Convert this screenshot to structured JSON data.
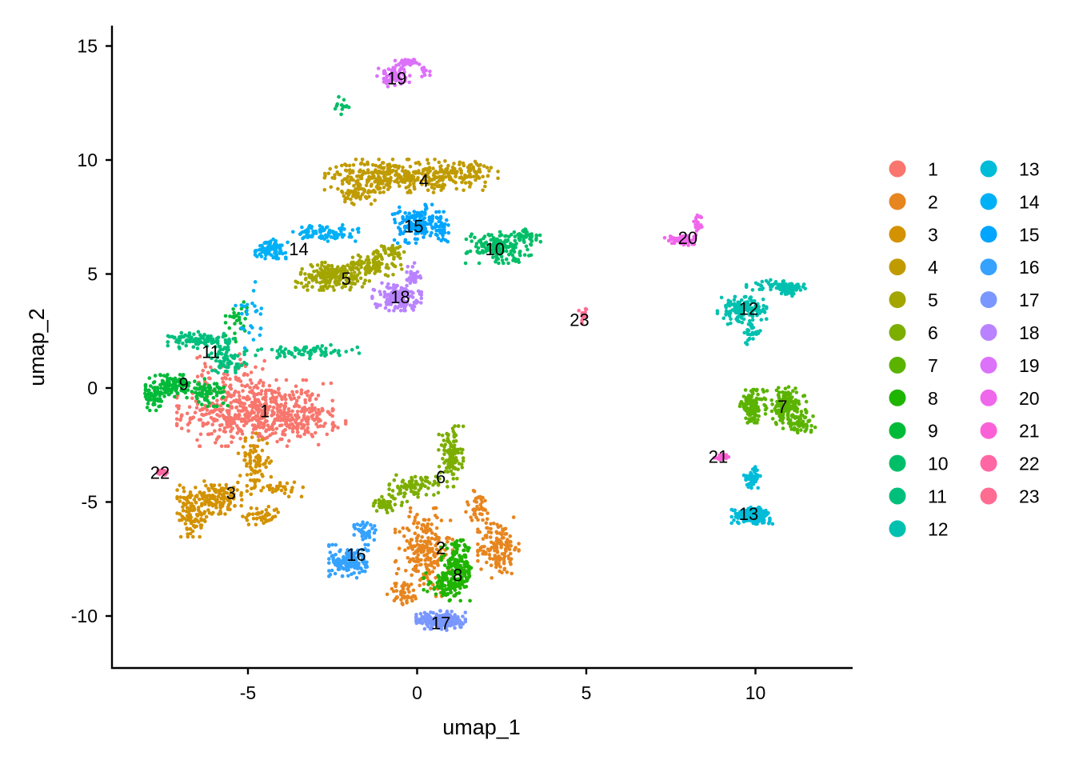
{
  "chart_data": {
    "type": "scatter",
    "title": "",
    "xlabel": "umap_1",
    "ylabel": "umap_2",
    "xlim": [
      -9,
      12.9
    ],
    "ylim": [
      -12.3,
      15.9
    ],
    "xticks": [
      -5,
      0,
      5,
      10
    ],
    "yticks": [
      -10,
      -5,
      0,
      5,
      10,
      15
    ],
    "xtick_labels": [
      "-5",
      "0",
      "5",
      "10"
    ],
    "ytick_labels": [
      "-10",
      "-5",
      "0",
      "5",
      "10",
      "15"
    ],
    "grid": false,
    "legend_position": "right",
    "legend_columns": 2,
    "clusters": [
      {
        "id": "1",
        "color": "#F8766D",
        "label_xy": [
          -4.5,
          -1.0
        ],
        "blobs": [
          [
            -4.8,
            -1.1,
            1.9,
            1.2,
            520
          ],
          [
            -5.6,
            0.6,
            0.9,
            0.8,
            60
          ],
          [
            -3.2,
            -1.4,
            0.9,
            0.6,
            80
          ]
        ]
      },
      {
        "id": "2",
        "color": "#E7851E",
        "label_xy": [
          0.7,
          -7.0
        ],
        "blobs": [
          [
            0.2,
            -7.2,
            0.7,
            1.6,
            220
          ],
          [
            2.4,
            -7.0,
            0.5,
            1.1,
            140
          ],
          [
            1.8,
            -5.3,
            0.4,
            0.7,
            40
          ],
          [
            -0.4,
            -9.0,
            0.4,
            0.5,
            40
          ]
        ]
      },
      {
        "id": "3",
        "color": "#D39200",
        "label_xy": [
          -5.5,
          -4.6
        ],
        "blobs": [
          [
            -6.0,
            -4.8,
            0.9,
            0.6,
            170
          ],
          [
            -6.6,
            -5.8,
            0.4,
            0.6,
            60
          ],
          [
            -4.8,
            -3.2,
            0.4,
            1.0,
            80
          ],
          [
            -4.6,
            -5.6,
            0.5,
            0.4,
            50
          ],
          [
            -4.1,
            -4.4,
            0.6,
            0.3,
            30
          ]
        ]
      },
      {
        "id": "4",
        "color": "#C09B00",
        "label_xy": [
          0.2,
          9.1
        ],
        "blobs": [
          [
            -0.8,
            9.3,
            1.6,
            0.6,
            300
          ],
          [
            1.3,
            9.4,
            0.9,
            0.6,
            120
          ],
          [
            -1.7,
            8.5,
            0.5,
            0.4,
            50
          ]
        ]
      },
      {
        "id": "5",
        "color": "#A3A500",
        "label_xy": [
          -2.1,
          4.8
        ],
        "blobs": [
          [
            -2.5,
            4.9,
            0.9,
            0.5,
            200
          ],
          [
            -1.3,
            5.4,
            0.7,
            0.4,
            90
          ],
          [
            -0.8,
            6.0,
            0.5,
            0.3,
            40
          ]
        ]
      },
      {
        "id": "6",
        "color": "#7CAE00",
        "label_xy": [
          0.7,
          -3.9
        ],
        "blobs": [
          [
            1.0,
            -3.0,
            0.3,
            1.1,
            120
          ],
          [
            -0.1,
            -4.3,
            0.6,
            0.4,
            90
          ],
          [
            -0.9,
            -5.1,
            0.5,
            0.3,
            50
          ]
        ]
      },
      {
        "id": "7",
        "color": "#5BB300",
        "label_xy": [
          10.8,
          -0.8
        ],
        "blobs": [
          [
            10.9,
            -0.8,
            0.5,
            0.7,
            170
          ],
          [
            9.9,
            -0.8,
            0.3,
            0.6,
            110
          ],
          [
            11.3,
            -1.6,
            0.4,
            0.3,
            50
          ]
        ]
      },
      {
        "id": "8",
        "color": "#1FB400",
        "label_xy": [
          1.2,
          -8.2
        ],
        "blobs": [
          [
            1.2,
            -8.0,
            0.4,
            1.1,
            190
          ],
          [
            0.8,
            -8.6,
            0.5,
            0.4,
            60
          ]
        ]
      },
      {
        "id": "9",
        "color": "#00BA38",
        "label_xy": [
          -6.9,
          0.2
        ],
        "blobs": [
          [
            -7.3,
            0.1,
            0.6,
            0.4,
            120
          ],
          [
            -7.8,
            -0.5,
            0.2,
            0.4,
            40
          ],
          [
            -6.2,
            -0.2,
            0.5,
            0.5,
            70
          ],
          [
            -5.3,
            3.0,
            0.3,
            0.8,
            30
          ]
        ]
      },
      {
        "id": "10",
        "color": "#00BE67",
        "label_xy": [
          2.3,
          6.1
        ],
        "blobs": [
          [
            2.4,
            6.2,
            0.8,
            0.6,
            160
          ],
          [
            3.2,
            6.6,
            0.4,
            0.3,
            40
          ],
          [
            -2.2,
            12.4,
            0.2,
            0.4,
            14
          ]
        ]
      },
      {
        "id": "11",
        "color": "#00BF7D",
        "label_xy": [
          -6.1,
          1.6
        ],
        "blobs": [
          [
            -6.4,
            2.1,
            0.8,
            0.3,
            110
          ],
          [
            -5.6,
            1.2,
            0.5,
            0.5,
            70
          ],
          [
            -3.2,
            1.6,
            1.3,
            0.25,
            70
          ]
        ]
      },
      {
        "id": "12",
        "color": "#00C0AF",
        "label_xy": [
          9.8,
          3.5
        ],
        "blobs": [
          [
            9.6,
            3.4,
            0.6,
            0.5,
            140
          ],
          [
            10.7,
            4.5,
            0.8,
            0.2,
            60
          ],
          [
            11.0,
            4.3,
            0.3,
            0.3,
            40
          ],
          [
            9.9,
            2.4,
            0.2,
            0.4,
            30
          ]
        ]
      },
      {
        "id": "13",
        "color": "#00BCD8",
        "label_xy": [
          9.8,
          -5.5
        ],
        "blobs": [
          [
            9.9,
            -5.6,
            0.5,
            0.3,
            180
          ],
          [
            9.9,
            -3.9,
            0.2,
            0.4,
            50
          ]
        ]
      },
      {
        "id": "14",
        "color": "#00B0F6",
        "label_xy": [
          -3.5,
          6.1
        ],
        "blobs": [
          [
            -4.3,
            6.1,
            0.4,
            0.35,
            90
          ],
          [
            -2.7,
            6.8,
            0.8,
            0.3,
            90
          ],
          [
            -5.0,
            3.2,
            0.4,
            1.2,
            25
          ]
        ]
      },
      {
        "id": "15",
        "color": "#00A5FF",
        "label_xy": [
          -0.1,
          7.1
        ],
        "blobs": [
          [
            0.0,
            7.2,
            0.6,
            0.7,
            150
          ],
          [
            0.7,
            7.0,
            0.2,
            0.6,
            40
          ]
        ]
      },
      {
        "id": "16",
        "color": "#35A2FF",
        "label_xy": [
          -1.8,
          -7.3
        ],
        "blobs": [
          [
            -2.0,
            -7.6,
            0.5,
            0.6,
            160
          ],
          [
            -1.5,
            -6.3,
            0.3,
            0.5,
            40
          ]
        ]
      },
      {
        "id": "17",
        "color": "#7997FF",
        "label_xy": [
          0.7,
          -10.3
        ],
        "blobs": [
          [
            0.7,
            -10.2,
            0.6,
            0.35,
            200
          ]
        ]
      },
      {
        "id": "18",
        "color": "#B983FF",
        "label_xy": [
          -0.5,
          4.0
        ],
        "blobs": [
          [
            -0.6,
            4.0,
            0.6,
            0.5,
            150
          ],
          [
            -0.1,
            5.0,
            0.2,
            0.4,
            30
          ]
        ]
      },
      {
        "id": "19",
        "color": "#DC71FA",
        "label_xy": [
          -0.6,
          13.6
        ],
        "blobs": [
          [
            -0.7,
            13.7,
            0.4,
            0.4,
            70
          ],
          [
            -0.3,
            14.3,
            0.3,
            0.15,
            30
          ],
          [
            0.2,
            13.9,
            0.15,
            0.2,
            15
          ]
        ]
      },
      {
        "id": "20",
        "color": "#EF67EB",
        "label_xy": [
          8.0,
          6.6
        ],
        "blobs": [
          [
            7.8,
            6.5,
            0.4,
            0.2,
            70
          ],
          [
            8.3,
            7.2,
            0.1,
            0.4,
            25
          ]
        ]
      },
      {
        "id": "21",
        "color": "#FB61D7",
        "label_xy": [
          8.9,
          -3.0
        ],
        "blobs": [
          [
            9.0,
            -3.0,
            0.2,
            0.12,
            20
          ]
        ]
      },
      {
        "id": "22",
        "color": "#FF67A4",
        "label_xy": [
          -7.6,
          -3.7
        ],
        "blobs": [
          [
            -7.5,
            -3.7,
            0.2,
            0.12,
            20
          ]
        ]
      },
      {
        "id": "23",
        "color": "#FF6C91",
        "label_xy": [
          4.8,
          3.0
        ],
        "blobs": [
          [
            4.9,
            3.2,
            0.1,
            0.3,
            16
          ]
        ]
      }
    ]
  },
  "axes": {
    "x_title": "umap_1",
    "y_title": "umap_2"
  },
  "legend": {
    "items": [
      {
        "label": "1",
        "color": "#F8766D"
      },
      {
        "label": "2",
        "color": "#E7851E"
      },
      {
        "label": "3",
        "color": "#D39200"
      },
      {
        "label": "4",
        "color": "#C09B00"
      },
      {
        "label": "5",
        "color": "#A3A500"
      },
      {
        "label": "6",
        "color": "#7CAE00"
      },
      {
        "label": "7",
        "color": "#5BB300"
      },
      {
        "label": "8",
        "color": "#1FB400"
      },
      {
        "label": "9",
        "color": "#00BA38"
      },
      {
        "label": "10",
        "color": "#00BE67"
      },
      {
        "label": "11",
        "color": "#00BF7D"
      },
      {
        "label": "12",
        "color": "#00C0AF"
      },
      {
        "label": "13",
        "color": "#00BCD8"
      },
      {
        "label": "14",
        "color": "#00B0F6"
      },
      {
        "label": "15",
        "color": "#00A5FF"
      },
      {
        "label": "16",
        "color": "#35A2FF"
      },
      {
        "label": "17",
        "color": "#7997FF"
      },
      {
        "label": "18",
        "color": "#B983FF"
      },
      {
        "label": "19",
        "color": "#DC71FA"
      },
      {
        "label": "20",
        "color": "#EF67EB"
      },
      {
        "label": "21",
        "color": "#FB61D7"
      },
      {
        "label": "22",
        "color": "#FF67A4"
      },
      {
        "label": "23",
        "color": "#FF6C91"
      }
    ]
  }
}
